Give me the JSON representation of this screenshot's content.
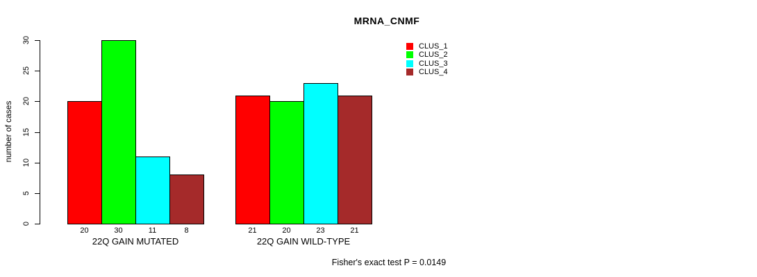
{
  "chart_data": {
    "type": "bar",
    "title": "MRNA_CNMF",
    "ylabel": "number of cases",
    "xlabel": "",
    "footer": "Fisher's exact test P = 0.0149",
    "ylim": [
      0,
      30
    ],
    "yticks": [
      0,
      5,
      10,
      15,
      20,
      25,
      30
    ],
    "grid": false,
    "legend_position": "right",
    "show_value_labels": true,
    "categories": [
      "22Q GAIN MUTATED",
      "22Q GAIN WILD-TYPE"
    ],
    "series": [
      {
        "name": "CLUS_1",
        "color": "#ff0000",
        "values": [
          20,
          21
        ]
      },
      {
        "name": "CLUS_2",
        "color": "#00ff00",
        "values": [
          30,
          20
        ]
      },
      {
        "name": "CLUS_3",
        "color": "#00ffff",
        "values": [
          11,
          23
        ]
      },
      {
        "name": "CLUS_4",
        "color": "#a52a2a",
        "values": [
          8,
          21
        ]
      }
    ]
  }
}
